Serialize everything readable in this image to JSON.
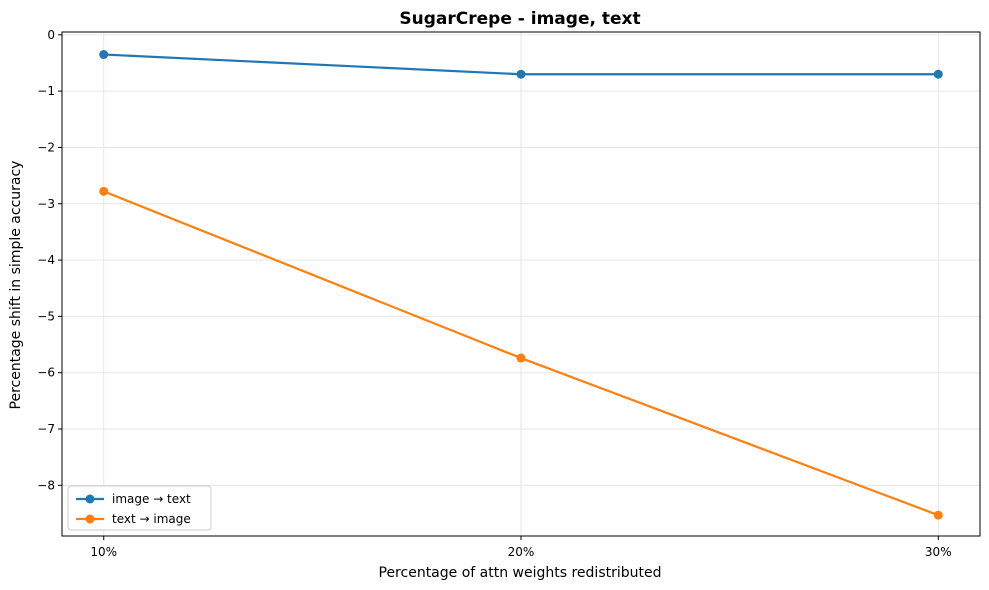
{
  "chart_data": {
    "type": "line",
    "title": "SugarCrepe - image, text",
    "xlabel": "Percentage of attn weights redistributed",
    "ylabel": "Percentage shift in simple accuracy",
    "categories": [
      "10%",
      "20%",
      "30%"
    ],
    "x": [
      10,
      20,
      30
    ],
    "ylim": [
      -8.9,
      0.05
    ],
    "yticks": [
      0,
      -1,
      -2,
      -3,
      -4,
      -5,
      -6,
      -7,
      -8
    ],
    "grid": true,
    "legend_position": "lower-left",
    "series": [
      {
        "name": "image → text",
        "color": "#1f77b4",
        "values": [
          -0.35,
          -0.7,
          -0.7
        ]
      },
      {
        "name": "text → image",
        "color": "#ff7f0e",
        "values": [
          -2.78,
          -5.74,
          -8.53
        ]
      }
    ]
  }
}
